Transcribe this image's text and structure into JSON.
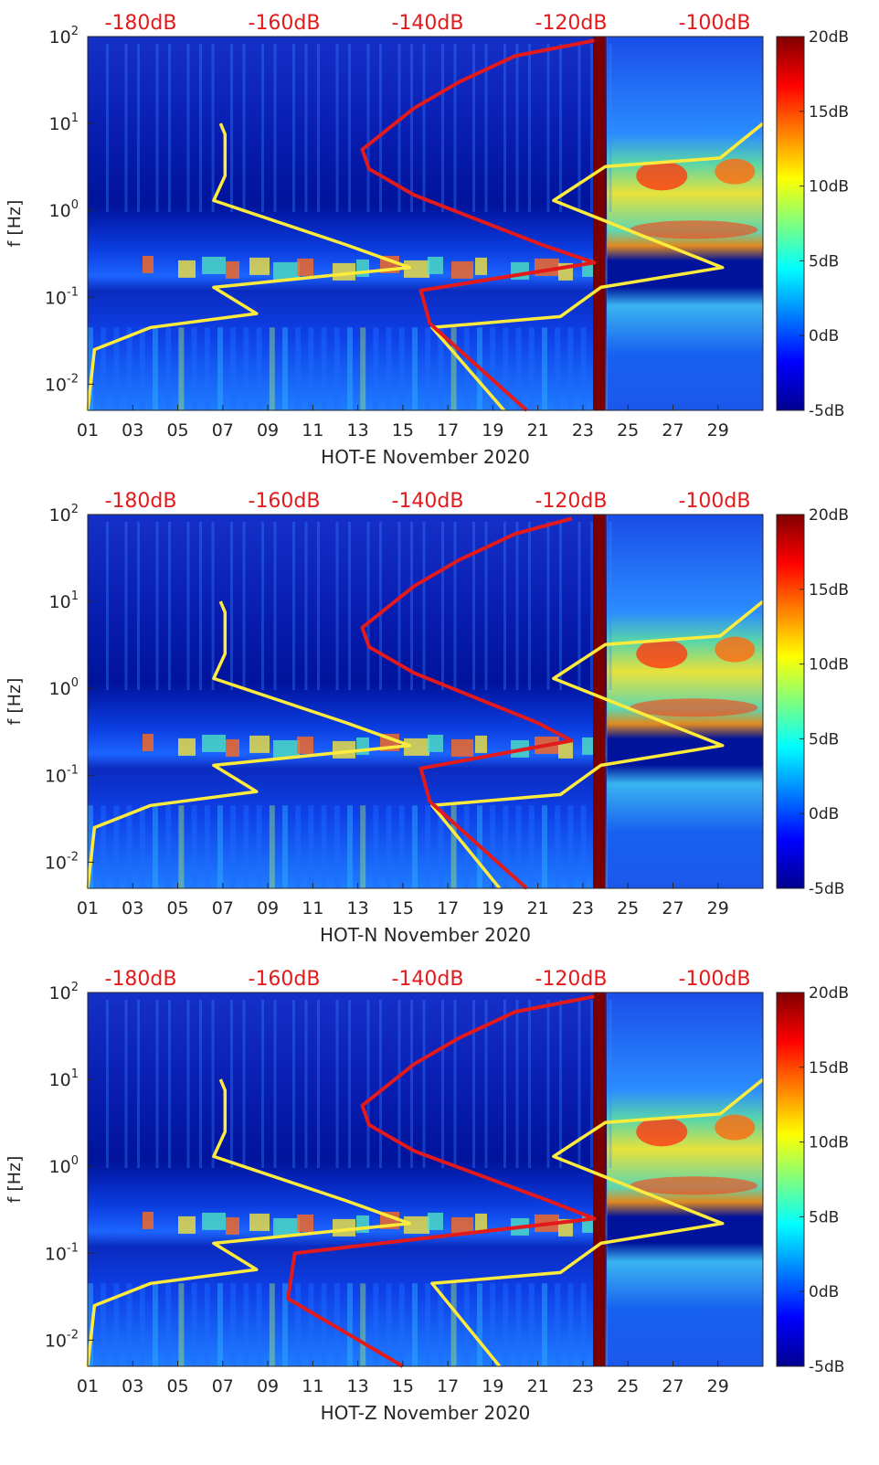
{
  "chart_data": [
    {
      "type": "heatmap",
      "title": "",
      "xlabel": "HOT-E November 2020",
      "ylabel": "f [Hz]",
      "x_tick_labels": [
        "01",
        "03",
        "05",
        "07",
        "09",
        "11",
        "13",
        "15",
        "17",
        "19",
        "21",
        "23",
        "25",
        "27",
        "29"
      ],
      "y_tick_labels": [
        "10^-2",
        "10^-1",
        "10^0",
        "10^1",
        "10^2"
      ],
      "ylim": [
        0.005,
        100
      ],
      "y_scale": "log",
      "xlim": [
        1,
        31
      ],
      "top_axis_labels": [
        "-180dB",
        "-160dB",
        "-140dB",
        "-120dB",
        "-100dB"
      ],
      "colorbar_labels": [
        "20dB",
        "15dB",
        "10dB",
        "5dB",
        "0dB",
        "-5dB"
      ],
      "colorbar_range": [
        -5,
        20
      ],
      "colormap": "jet",
      "series": [
        {
          "color": "#ffeb3b",
          "x": [
            1.0,
            1.3,
            3.8,
            8.5,
            6.6,
            15.3,
            12.5,
            6.6,
            7.1,
            7.1,
            6.9
          ],
          "y": [
            0.005,
            0.025,
            0.045,
            0.065,
            0.13,
            0.22,
            0.4,
            1.3,
            2.5,
            7.5,
            10
          ]
        },
        {
          "color": "#ffeb3b",
          "x": [
            19.5,
            16.3,
            22.0,
            23.8,
            29.2,
            21.7,
            24.0,
            29.1,
            31.0
          ],
          "y": [
            0.005,
            0.045,
            0.06,
            0.13,
            0.22,
            1.3,
            3.2,
            4.0,
            10
          ]
        },
        {
          "color": "#e31a1c",
          "x": [
            20.5,
            16.2,
            15.8,
            23.5,
            21.2,
            15.5,
            13.5,
            13.2,
            15.5,
            17.5,
            20.0,
            23.5
          ],
          "y": [
            0.005,
            0.05,
            0.12,
            0.25,
            0.4,
            1.5,
            3.0,
            5.0,
            15,
            30,
            60,
            90
          ]
        }
      ]
    },
    {
      "type": "heatmap",
      "title": "",
      "xlabel": "HOT-N November 2020",
      "ylabel": "f [Hz]",
      "x_tick_labels": [
        "01",
        "03",
        "05",
        "07",
        "09",
        "11",
        "13",
        "15",
        "17",
        "19",
        "21",
        "23",
        "25",
        "27",
        "29"
      ],
      "y_tick_labels": [
        "10^-2",
        "10^-1",
        "10^0",
        "10^1",
        "10^2"
      ],
      "ylim": [
        0.005,
        100
      ],
      "y_scale": "log",
      "xlim": [
        1,
        31
      ],
      "top_axis_labels": [
        "-180dB",
        "-160dB",
        "-140dB",
        "-120dB",
        "-100dB"
      ],
      "colorbar_labels": [
        "20dB",
        "15dB",
        "10dB",
        "5dB",
        "0dB",
        "-5dB"
      ],
      "colorbar_range": [
        -5,
        20
      ],
      "colormap": "jet",
      "series": [
        {
          "color": "#ffeb3b",
          "x": [
            1.0,
            1.3,
            3.8,
            8.5,
            6.6,
            15.3,
            12.5,
            6.6,
            7.1,
            7.1,
            6.9
          ],
          "y": [
            0.005,
            0.025,
            0.045,
            0.065,
            0.13,
            0.22,
            0.4,
            1.3,
            2.5,
            7.5,
            10
          ]
        },
        {
          "color": "#ffeb3b",
          "x": [
            19.3,
            16.3,
            22.0,
            23.8,
            29.2,
            21.7,
            24.0,
            29.1,
            31.0
          ],
          "y": [
            0.005,
            0.045,
            0.06,
            0.13,
            0.22,
            1.3,
            3.2,
            4.0,
            10
          ]
        },
        {
          "color": "#e31a1c",
          "x": [
            20.5,
            16.2,
            15.8,
            22.5,
            21.0,
            15.5,
            13.5,
            13.2,
            15.5,
            17.5,
            20.0,
            22.5
          ],
          "y": [
            0.005,
            0.05,
            0.12,
            0.25,
            0.4,
            1.5,
            3.0,
            5.0,
            15,
            30,
            60,
            90
          ]
        }
      ]
    },
    {
      "type": "heatmap",
      "title": "",
      "xlabel": "HOT-Z November 2020",
      "ylabel": "f [Hz]",
      "x_tick_labels": [
        "01",
        "03",
        "05",
        "07",
        "09",
        "11",
        "13",
        "15",
        "17",
        "19",
        "21",
        "23",
        "25",
        "27",
        "29"
      ],
      "y_tick_labels": [
        "10^-2",
        "10^-1",
        "10^0",
        "10^1",
        "10^2"
      ],
      "ylim": [
        0.005,
        100
      ],
      "y_scale": "log",
      "xlim": [
        1,
        31
      ],
      "top_axis_labels": [
        "-180dB",
        "-160dB",
        "-140dB",
        "-120dB",
        "-100dB"
      ],
      "colorbar_labels": [
        "20dB",
        "15dB",
        "10dB",
        "5dB",
        "0dB",
        "-5dB"
      ],
      "colorbar_range": [
        -5,
        20
      ],
      "colormap": "jet",
      "series": [
        {
          "color": "#ffeb3b",
          "x": [
            1.0,
            1.3,
            3.8,
            8.5,
            6.6,
            15.3,
            12.5,
            6.6,
            7.1,
            7.1,
            6.9
          ],
          "y": [
            0.005,
            0.025,
            0.045,
            0.065,
            0.13,
            0.22,
            0.4,
            1.3,
            2.5,
            7.5,
            10
          ]
        },
        {
          "color": "#ffeb3b",
          "x": [
            19.3,
            16.3,
            22.0,
            23.8,
            29.2,
            21.7,
            24.0,
            29.1,
            31.0
          ],
          "y": [
            0.005,
            0.045,
            0.06,
            0.13,
            0.22,
            1.3,
            3.2,
            4.0,
            10
          ]
        },
        {
          "color": "#e31a1c",
          "x": [
            15.0,
            9.9,
            10.2,
            23.5,
            21.5,
            15.5,
            13.5,
            13.2,
            15.5,
            17.5,
            20.0,
            23.5
          ],
          "y": [
            0.005,
            0.03,
            0.1,
            0.25,
            0.4,
            1.5,
            3.0,
            5.0,
            15,
            30,
            60,
            90
          ]
        }
      ]
    }
  ]
}
